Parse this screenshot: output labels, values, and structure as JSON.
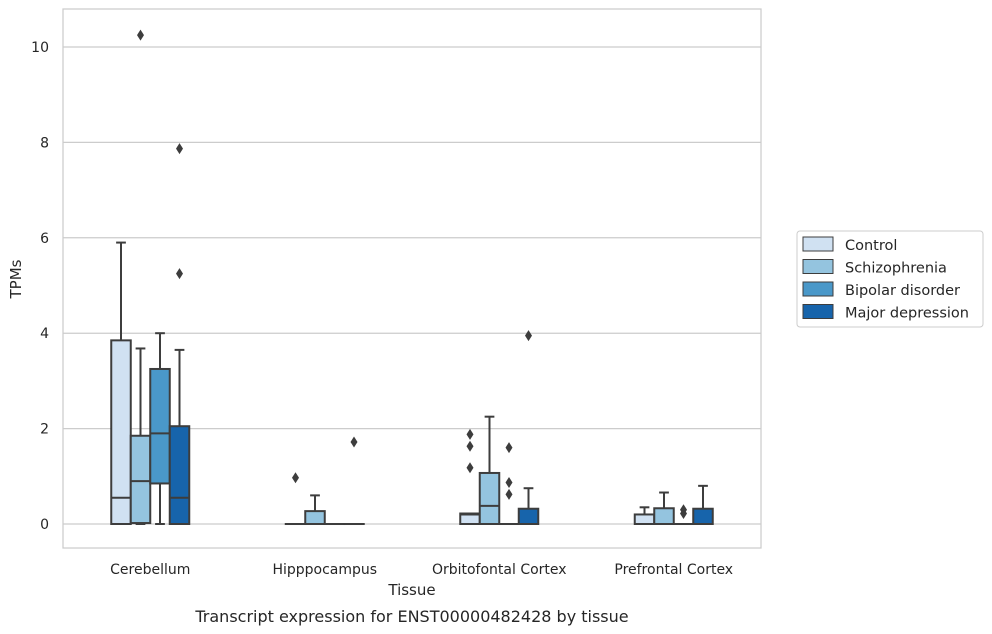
{
  "chart_data": {
    "type": "box",
    "xlabel": "Tissue",
    "ylabel": "TPMs",
    "caption": "Transcript expression for ENST00000482428 by tissue",
    "ylim": [
      -0.5,
      10.8
    ],
    "yticks": [
      0,
      2,
      4,
      6,
      8,
      10
    ],
    "grid": "horizontal",
    "legend_position": "right",
    "categories": [
      "Cerebellum",
      "Hipppocampus",
      "Orbitofontal Cortex",
      "Prefrontal Cortex"
    ],
    "series": [
      {
        "name": "Control",
        "color": "#d0e1f2"
      },
      {
        "name": "Schizophrenia",
        "color": "#94c4df"
      },
      {
        "name": "Bipolar disorder",
        "color": "#4a98c9"
      },
      {
        "name": "Major depression",
        "color": "#1764ab"
      }
    ],
    "boxes": [
      {
        "category": "Cerebellum",
        "series": "Control",
        "whislo": 0,
        "q1": 0,
        "med": 0.55,
        "q3": 3.85,
        "whishi": 5.9,
        "fliers": []
      },
      {
        "category": "Cerebellum",
        "series": "Schizophrenia",
        "whislo": 0,
        "q1": 0.02,
        "med": 0.9,
        "q3": 1.85,
        "whishi": 3.68,
        "fliers": [
          10.25
        ]
      },
      {
        "category": "Cerebellum",
        "series": "Bipolar disorder",
        "whislo": 0,
        "q1": 0.85,
        "med": 1.9,
        "q3": 3.25,
        "whishi": 4.0,
        "fliers": []
      },
      {
        "category": "Cerebellum",
        "series": "Major depression",
        "whislo": 0,
        "q1": 0,
        "med": 0.55,
        "q3": 2.05,
        "whishi": 3.65,
        "fliers": [
          5.25,
          7.87
        ]
      },
      {
        "category": "Hipppocampus",
        "series": "Control",
        "whislo": 0,
        "q1": 0,
        "med": 0,
        "q3": 0,
        "whishi": 0,
        "fliers": [
          0.97
        ]
      },
      {
        "category": "Hipppocampus",
        "series": "Schizophrenia",
        "whislo": 0,
        "q1": 0,
        "med": 0,
        "q3": 0.27,
        "whishi": 0.6,
        "fliers": []
      },
      {
        "category": "Hipppocampus",
        "series": "Bipolar disorder",
        "whislo": 0,
        "q1": 0,
        "med": 0,
        "q3": 0,
        "whishi": 0,
        "fliers": []
      },
      {
        "category": "Hipppocampus",
        "series": "Major depression",
        "whislo": 0,
        "q1": 0,
        "med": 0,
        "q3": 0,
        "whishi": 0,
        "fliers": [
          1.72
        ]
      },
      {
        "category": "Orbitofontal Cortex",
        "series": "Control",
        "whislo": 0,
        "q1": 0,
        "med": 0.2,
        "q3": 0.22,
        "whishi": 0.22,
        "fliers": [
          1.18,
          1.63,
          1.88
        ]
      },
      {
        "category": "Orbitofontal Cortex",
        "series": "Schizophrenia",
        "whislo": 0,
        "q1": 0,
        "med": 0.38,
        "q3": 1.07,
        "whishi": 2.25,
        "fliers": []
      },
      {
        "category": "Orbitofontal Cortex",
        "series": "Bipolar disorder",
        "whislo": 0,
        "q1": 0,
        "med": 0,
        "q3": 0,
        "whishi": 0,
        "fliers": [
          0.62,
          0.87,
          1.6
        ]
      },
      {
        "category": "Orbitofontal Cortex",
        "series": "Major depression",
        "whislo": 0,
        "q1": 0,
        "med": 0,
        "q3": 0.32,
        "whishi": 0.75,
        "fliers": [
          3.95
        ]
      },
      {
        "category": "Prefrontal Cortex",
        "series": "Control",
        "whislo": 0,
        "q1": 0,
        "med": 0,
        "q3": 0.2,
        "whishi": 0.35,
        "fliers": []
      },
      {
        "category": "Prefrontal Cortex",
        "series": "Schizophrenia",
        "whislo": 0,
        "q1": 0,
        "med": 0,
        "q3": 0.33,
        "whishi": 0.66,
        "fliers": []
      },
      {
        "category": "Prefrontal Cortex",
        "series": "Bipolar disorder",
        "whislo": 0,
        "q1": 0,
        "med": 0,
        "q3": 0,
        "whishi": 0,
        "fliers": [
          0.22,
          0.3
        ]
      },
      {
        "category": "Prefrontal Cortex",
        "series": "Major depression",
        "whislo": 0,
        "q1": 0,
        "med": 0,
        "q3": 0.32,
        "whishi": 0.8,
        "fliers": []
      }
    ]
  }
}
